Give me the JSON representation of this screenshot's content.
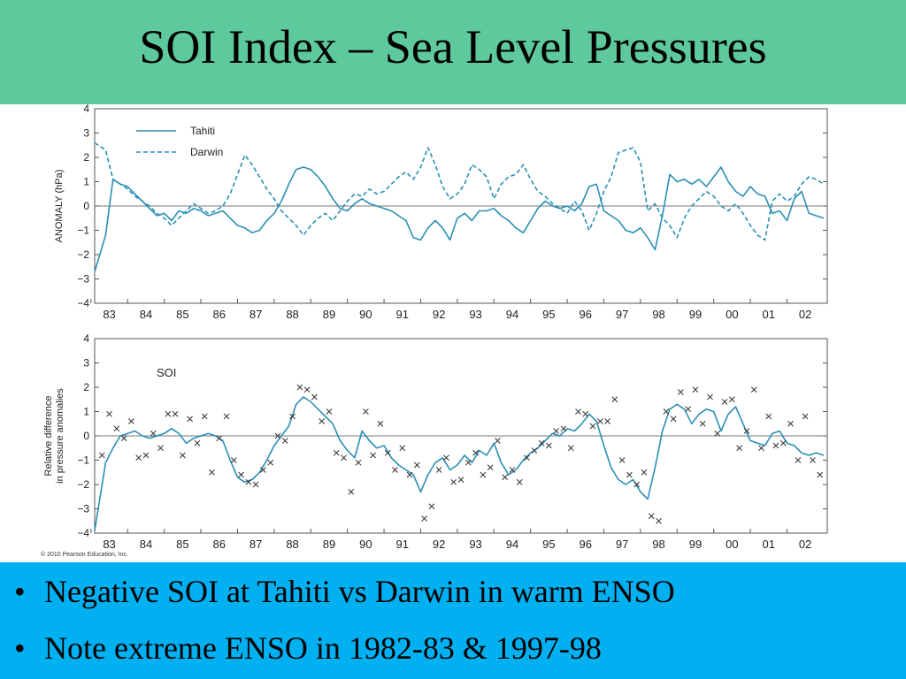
{
  "slide": {
    "title": "SOI Index – Sea Level Pressures",
    "bullets": [
      "Negative SOI at Tahiti vs Darwin in warm ENSO",
      "Note extreme ENSO in 1982-83 & 1997-98"
    ],
    "colors": {
      "title_bar": "#5fc99e",
      "bullet_bar": "#00b0f0",
      "series": "#2a8fb5"
    }
  },
  "figure": {
    "copyright": "© 2010 Pearson Education, Inc."
  },
  "chart_data": [
    {
      "type": "line",
      "ylabel": "ANOMALY (hPa)",
      "xlabel": "",
      "ylim": [
        -4,
        4
      ],
      "xlim": [
        1982.6,
        2002.6
      ],
      "yticks": [
        "4",
        "3",
        "2",
        "1",
        "0",
        "−1",
        "−2",
        "−3",
        "−4"
      ],
      "xticks": [
        "83",
        "84",
        "85",
        "86",
        "87",
        "88",
        "89",
        "90",
        "91",
        "92",
        "93",
        "94",
        "95",
        "96",
        "97",
        "98",
        "99",
        "00",
        "01",
        "02"
      ],
      "legend_position": "top-left",
      "series": [
        {
          "name": "Tahiti",
          "style": "solid",
          "x": [
            1982.6,
            1982.9,
            1983.1,
            1983.3,
            1983.5,
            1983.7,
            1983.9,
            1984.1,
            1984.3,
            1984.5,
            1984.7,
            1984.9,
            1985.1,
            1985.3,
            1985.5,
            1985.7,
            1985.9,
            1986.1,
            1986.3,
            1986.5,
            1986.7,
            1986.9,
            1987.1,
            1987.3,
            1987.5,
            1987.7,
            1987.9,
            1988.1,
            1988.3,
            1988.5,
            1988.7,
            1988.9,
            1989.1,
            1989.3,
            1989.5,
            1989.7,
            1989.9,
            1990.1,
            1990.3,
            1990.5,
            1990.7,
            1990.9,
            1991.1,
            1991.3,
            1991.5,
            1991.7,
            1991.9,
            1992.1,
            1992.3,
            1992.5,
            1992.7,
            1992.9,
            1993.1,
            1993.3,
            1993.5,
            1993.7,
            1993.9,
            1994.1,
            1994.3,
            1994.5,
            1994.7,
            1994.9,
            1995.1,
            1995.3,
            1995.5,
            1995.7,
            1995.9,
            1996.1,
            1996.3,
            1996.5,
            1996.7,
            1996.9,
            1997.1,
            1997.3,
            1997.5,
            1997.7,
            1997.9,
            1998.1,
            1998.3,
            1998.5,
            1998.7,
            1998.9,
            1999.1,
            1999.3,
            1999.5,
            1999.7,
            1999.9,
            2000.1,
            2000.3,
            2000.5,
            2000.7,
            2000.9,
            2001.1,
            2001.3,
            2001.5,
            2001.7,
            2001.9,
            2002.1,
            2002.3,
            2002.5
          ],
          "y": [
            -2.7,
            -1.2,
            1.1,
            0.9,
            0.8,
            0.5,
            0.2,
            -0.1,
            -0.4,
            -0.3,
            -0.6,
            -0.2,
            -0.3,
            -0.1,
            -0.2,
            -0.4,
            -0.3,
            -0.2,
            -0.5,
            -0.8,
            -0.9,
            -1.1,
            -1.0,
            -0.6,
            -0.3,
            0.2,
            0.9,
            1.5,
            1.6,
            1.5,
            1.2,
            0.8,
            0.3,
            -0.1,
            -0.2,
            0.1,
            0.3,
            0.1,
            0.0,
            -0.1,
            -0.2,
            -0.4,
            -0.6,
            -1.3,
            -1.4,
            -0.9,
            -0.6,
            -0.9,
            -1.4,
            -0.5,
            -0.3,
            -0.6,
            -0.2,
            -0.2,
            -0.1,
            -0.4,
            -0.6,
            -0.9,
            -1.1,
            -0.6,
            -0.1,
            0.2,
            0.0,
            -0.1,
            0.0,
            -0.2,
            0.1,
            0.8,
            0.9,
            -0.2,
            -0.4,
            -0.6,
            -1.0,
            -1.1,
            -0.9,
            -1.3,
            -1.8,
            -0.4,
            1.3,
            1.0,
            1.1,
            0.9,
            1.1,
            0.8,
            1.2,
            1.6,
            1.0,
            0.6,
            0.4,
            0.8,
            0.5,
            0.4,
            -0.3,
            -0.2,
            -0.6,
            0.3,
            0.6,
            -0.3,
            -0.4,
            -0.5
          ]
        },
        {
          "name": "Darwin",
          "style": "dashed",
          "x": [
            1982.6,
            1982.9,
            1983.1,
            1983.3,
            1983.5,
            1983.7,
            1983.9,
            1984.1,
            1984.3,
            1984.5,
            1984.7,
            1984.9,
            1985.1,
            1985.3,
            1985.5,
            1985.7,
            1985.9,
            1986.1,
            1986.3,
            1986.5,
            1986.7,
            1986.9,
            1987.1,
            1987.3,
            1987.5,
            1987.7,
            1987.9,
            1988.1,
            1988.3,
            1988.5,
            1988.7,
            1988.9,
            1989.1,
            1989.3,
            1989.5,
            1989.7,
            1989.9,
            1990.1,
            1990.3,
            1990.5,
            1990.7,
            1990.9,
            1991.1,
            1991.3,
            1991.5,
            1991.7,
            1991.9,
            1992.1,
            1992.3,
            1992.5,
            1992.7,
            1992.9,
            1993.1,
            1993.3,
            1993.5,
            1993.7,
            1993.9,
            1994.1,
            1994.3,
            1994.5,
            1994.7,
            1994.9,
            1995.1,
            1995.3,
            1995.5,
            1995.7,
            1995.9,
            1996.1,
            1996.3,
            1996.5,
            1996.7,
            1996.9,
            1997.1,
            1997.3,
            1997.5,
            1997.7,
            1997.9,
            1998.1,
            1998.3,
            1998.5,
            1998.7,
            1998.9,
            1999.1,
            1999.3,
            1999.5,
            1999.7,
            1999.9,
            2000.1,
            2000.3,
            2000.5,
            2000.7,
            2000.9,
            2001.1,
            2001.3,
            2001.5,
            2001.7,
            2001.9,
            2002.1,
            2002.3,
            2002.5
          ],
          "y": [
            2.6,
            2.3,
            1.1,
            0.9,
            0.7,
            0.4,
            0.2,
            0.0,
            -0.3,
            -0.5,
            -0.8,
            -0.5,
            -0.2,
            0.1,
            -0.1,
            -0.3,
            -0.2,
            0.0,
            0.5,
            1.3,
            2.1,
            1.7,
            1.2,
            0.7,
            0.3,
            -0.2,
            -0.5,
            -0.8,
            -1.2,
            -0.8,
            -0.5,
            -0.3,
            -0.6,
            -0.2,
            0.2,
            0.5,
            0.4,
            0.7,
            0.5,
            0.6,
            0.9,
            1.2,
            1.4,
            1.1,
            1.6,
            2.4,
            1.7,
            0.8,
            0.3,
            0.5,
            0.9,
            1.7,
            1.5,
            1.2,
            0.3,
            0.9,
            1.2,
            1.3,
            1.7,
            1.1,
            0.6,
            0.4,
            0.1,
            -0.1,
            -0.3,
            0.2,
            -0.2,
            -1.0,
            -0.3,
            0.6,
            1.2,
            2.2,
            2.3,
            2.4,
            1.8,
            -0.2,
            0.1,
            -0.5,
            -0.8,
            -1.3,
            -0.5,
            0.0,
            0.3,
            0.6,
            0.4,
            0.0,
            -0.2,
            0.1,
            -0.3,
            -0.8,
            -1.2,
            -1.4,
            0.2,
            0.5,
            0.2,
            0.4,
            0.9,
            1.2,
            1.1,
            0.9
          ]
        }
      ]
    },
    {
      "type": "line",
      "ylabel": "Relative difference in pressure anomalies",
      "ylabel_lines": [
        "Relative difference",
        "in pressure anomalies"
      ],
      "xlabel": "",
      "ylim": [
        -4,
        4
      ],
      "xlim": [
        1982.6,
        2002.6
      ],
      "yticks": [
        "4",
        "3",
        "2",
        "1",
        "0",
        "−1",
        "−2",
        "−3",
        "−4"
      ],
      "xticks": [
        "83",
        "84",
        "85",
        "86",
        "87",
        "88",
        "89",
        "90",
        "91",
        "92",
        "93",
        "94",
        "95",
        "96",
        "97",
        "98",
        "99",
        "00",
        "01",
        "02"
      ],
      "label": "SOI",
      "series": [
        {
          "name": "SOI",
          "style": "solid",
          "x": [
            1982.6,
            1982.9,
            1983.1,
            1983.3,
            1983.5,
            1983.7,
            1983.9,
            1984.1,
            1984.3,
            1984.5,
            1984.7,
            1984.9,
            1985.1,
            1985.3,
            1985.5,
            1985.7,
            1985.9,
            1986.1,
            1986.3,
            1986.5,
            1986.7,
            1986.9,
            1987.1,
            1987.3,
            1987.5,
            1987.7,
            1987.9,
            1988.1,
            1988.3,
            1988.5,
            1988.7,
            1988.9,
            1989.1,
            1989.3,
            1989.5,
            1989.7,
            1989.9,
            1990.1,
            1990.3,
            1990.5,
            1990.7,
            1990.9,
            1991.1,
            1991.3,
            1991.5,
            1991.7,
            1991.9,
            1992.1,
            1992.3,
            1992.5,
            1992.7,
            1992.9,
            1993.1,
            1993.3,
            1993.5,
            1993.7,
            1993.9,
            1994.1,
            1994.3,
            1994.5,
            1994.7,
            1994.9,
            1995.1,
            1995.3,
            1995.5,
            1995.7,
            1995.9,
            1996.1,
            1996.3,
            1996.5,
            1996.7,
            1996.9,
            1997.1,
            1997.3,
            1997.5,
            1997.7,
            1997.9,
            1998.1,
            1998.3,
            1998.5,
            1998.7,
            1998.9,
            1999.1,
            1999.3,
            1999.5,
            1999.7,
            1999.9,
            2000.1,
            2000.3,
            2000.5,
            2000.7,
            2000.9,
            2001.1,
            2001.3,
            2001.5,
            2001.7,
            2001.9,
            2002.1,
            2002.3,
            2002.5
          ],
          "y": [
            -3.9,
            -1.1,
            -0.5,
            0.0,
            0.1,
            0.2,
            0.0,
            -0.1,
            0.0,
            0.1,
            0.3,
            0.1,
            -0.3,
            -0.1,
            0.0,
            0.1,
            0.0,
            -0.2,
            -1.0,
            -1.7,
            -1.9,
            -1.8,
            -1.5,
            -1.0,
            -0.4,
            0.0,
            0.4,
            1.3,
            1.6,
            1.4,
            1.1,
            0.8,
            0.5,
            -0.2,
            -0.6,
            -0.9,
            0.2,
            -0.2,
            -0.5,
            -0.4,
            -0.9,
            -1.2,
            -1.4,
            -1.6,
            -2.3,
            -1.6,
            -1.1,
            -0.9,
            -1.4,
            -1.2,
            -0.8,
            -1.1,
            -0.6,
            -0.8,
            -0.3,
            -1.1,
            -1.6,
            -1.4,
            -1.0,
            -0.7,
            -0.5,
            -0.2,
            0.1,
            0.0,
            0.3,
            0.2,
            0.5,
            0.9,
            0.6,
            -0.4,
            -1.3,
            -1.8,
            -2.0,
            -1.8,
            -2.3,
            -2.6,
            -1.3,
            0.2,
            1.1,
            1.3,
            1.1,
            0.5,
            0.9,
            1.1,
            1.0,
            0.2,
            0.9,
            1.2,
            0.5,
            -0.2,
            -0.3,
            -0.4,
            0.1,
            0.2,
            -0.3,
            -0.4,
            -0.7,
            -0.8,
            -0.7,
            -0.8
          ]
        },
        {
          "name": "",
          "style": "markers-x",
          "x": [
            1982.8,
            1983.0,
            1983.2,
            1983.4,
            1983.6,
            1983.8,
            1984.0,
            1984.2,
            1984.4,
            1984.6,
            1984.8,
            1985.0,
            1985.2,
            1985.4,
            1985.6,
            1985.8,
            1986.0,
            1986.2,
            1986.4,
            1986.6,
            1986.8,
            1987.0,
            1987.2,
            1987.4,
            1987.6,
            1987.8,
            1988.0,
            1988.2,
            1988.4,
            1988.6,
            1988.8,
            1989.0,
            1989.2,
            1989.4,
            1989.6,
            1989.8,
            1990.0,
            1990.2,
            1990.4,
            1990.6,
            1990.8,
            1991.0,
            1991.2,
            1991.4,
            1991.6,
            1991.8,
            1992.0,
            1992.2,
            1992.4,
            1992.6,
            1992.8,
            1993.0,
            1993.2,
            1993.4,
            1993.6,
            1993.8,
            1994.0,
            1994.2,
            1994.4,
            1994.6,
            1994.8,
            1995.0,
            1995.2,
            1995.4,
            1995.6,
            1995.8,
            1996.0,
            1996.2,
            1996.4,
            1996.6,
            1996.8,
            1997.0,
            1997.2,
            1997.4,
            1997.6,
            1997.8,
            1998.0,
            1998.2,
            1998.4,
            1998.6,
            1998.8,
            1999.0,
            1999.2,
            1999.4,
            1999.6,
            1999.8,
            2000.0,
            2000.2,
            2000.4,
            2000.6,
            2000.8,
            2001.0,
            2001.2,
            2001.4,
            2001.6,
            2001.8,
            2002.0,
            2002.2,
            2002.4
          ],
          "y": [
            -0.8,
            0.9,
            0.3,
            -0.1,
            0.6,
            -0.9,
            -0.8,
            0.1,
            -0.5,
            0.9,
            0.9,
            -0.8,
            0.7,
            -0.3,
            0.8,
            -1.5,
            -0.1,
            0.8,
            -1.0,
            -1.6,
            -1.9,
            -2.0,
            -1.4,
            -1.1,
            0.0,
            -0.2,
            0.8,
            2.0,
            1.9,
            1.6,
            0.6,
            1.0,
            -0.7,
            -0.9,
            -2.3,
            -1.1,
            1.0,
            -0.8,
            0.5,
            -0.7,
            -1.4,
            -0.5,
            -1.6,
            -1.2,
            -3.4,
            -2.9,
            -1.4,
            -0.9,
            -1.9,
            -1.8,
            -1.1,
            -0.7,
            -1.6,
            -1.3,
            -0.2,
            -1.7,
            -1.4,
            -1.9,
            -0.9,
            -0.6,
            -0.3,
            -0.4,
            0.2,
            0.3,
            -0.5,
            1.0,
            0.9,
            0.4,
            0.6,
            0.6,
            1.5,
            -1.0,
            -1.6,
            -2.0,
            -1.5,
            -3.3,
            -3.5,
            1.0,
            0.7,
            1.8,
            1.1,
            1.9,
            0.5,
            1.6,
            0.1,
            1.4,
            1.5,
            -0.5,
            0.2,
            1.9,
            -0.5,
            0.8,
            -0.4,
            -0.3,
            0.5,
            -1.0,
            0.8,
            -1.0,
            -1.6
          ]
        }
      ]
    }
  ]
}
